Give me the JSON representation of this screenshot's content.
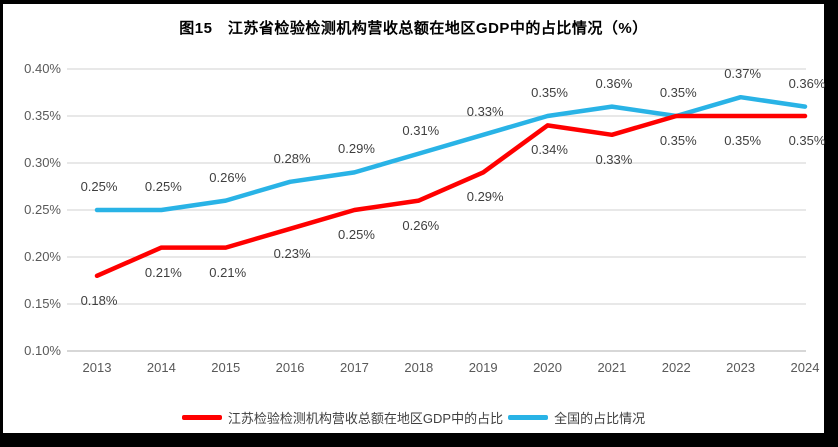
{
  "frame": {
    "background": "#000000",
    "canvas_background": "#ffffff"
  },
  "chart_data": {
    "type": "line",
    "title": "图15　江苏省检验检测机构营收总额在地区GDP中的占比情况（%）",
    "categories": [
      "2013",
      "2014",
      "2015",
      "2016",
      "2017",
      "2018",
      "2019",
      "2020",
      "2021",
      "2022",
      "2023",
      "2024"
    ],
    "series": [
      {
        "name": "全国的占比情况",
        "color": "#29b3e6",
        "values": [
          0.25,
          0.25,
          0.26,
          0.28,
          0.29,
          0.31,
          0.33,
          0.35,
          0.36,
          0.35,
          0.37,
          0.36
        ],
        "labels": [
          "0.25%",
          "0.25%",
          "0.26%",
          "0.28%",
          "0.29%",
          "0.31%",
          "0.33%",
          "0.35%",
          "0.36%",
          "0.35%",
          "0.37%",
          "0.36%"
        ],
        "label_position": "above"
      },
      {
        "name": "江苏检验检测机构营收总额在地区GDP中的占比",
        "color": "#ff0000",
        "values": [
          0.18,
          0.21,
          0.21,
          0.23,
          0.25,
          0.26,
          0.29,
          0.34,
          0.33,
          0.35,
          0.35,
          0.35
        ],
        "labels": [
          "0.18%",
          "0.21%",
          "0.21%",
          "0.23%",
          "0.25%",
          "0.26%",
          "0.29%",
          "0.34%",
          "0.33%",
          "0.35%",
          "0.35%",
          "0.35%"
        ],
        "label_position": "below"
      }
    ],
    "y_axis": {
      "min": 0.1,
      "max": 0.4,
      "step": 0.05,
      "tick_labels": [
        "0.40%",
        "0.35%",
        "0.30%",
        "0.25%",
        "0.20%",
        "0.15%",
        "0.10%"
      ],
      "format": "percent"
    },
    "grid": true,
    "legend_position": "bottom",
    "legend_order": [
      1,
      0
    ],
    "colors": {
      "gridline": "#d9d9d9",
      "axis_line": "#bfbfbf",
      "tick_label": "#595959",
      "data_label": "#3f3f3f",
      "title": "#000000"
    }
  }
}
